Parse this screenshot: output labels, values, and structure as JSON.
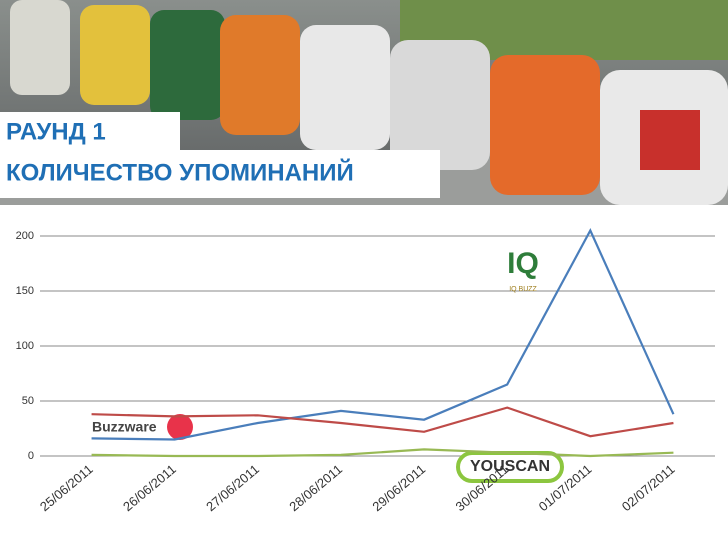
{
  "chart_data": {
    "type": "line",
    "title": "РАУНД 1",
    "subtitle": "КОЛИЧЕСТВО УПОМИНАНИЙ",
    "categories": [
      "25/06/2011",
      "26/06/2011",
      "27/06/2011",
      "28/06/2011",
      "29/06/2011",
      "30/06/2011",
      "01/07/2011",
      "02/07/2011"
    ],
    "series": [
      {
        "color": "#4a7ebb",
        "values": [
          16,
          15,
          30,
          41,
          33,
          65,
          205,
          38
        ]
      },
      {
        "color": "#be4b48",
        "values": [
          38,
          36,
          37,
          30,
          22,
          44,
          18,
          30
        ]
      },
      {
        "color": "#98b954",
        "values": [
          1,
          0,
          0,
          1,
          6,
          3,
          0,
          3
        ]
      }
    ],
    "ylim": [
      0,
      200
    ],
    "yticks": [
      0,
      50,
      100,
      150,
      200
    ],
    "grid": true,
    "annotations": [
      "Buzzware",
      "YOUSCAN",
      "IQ",
      "IQ BUZZ"
    ]
  }
}
